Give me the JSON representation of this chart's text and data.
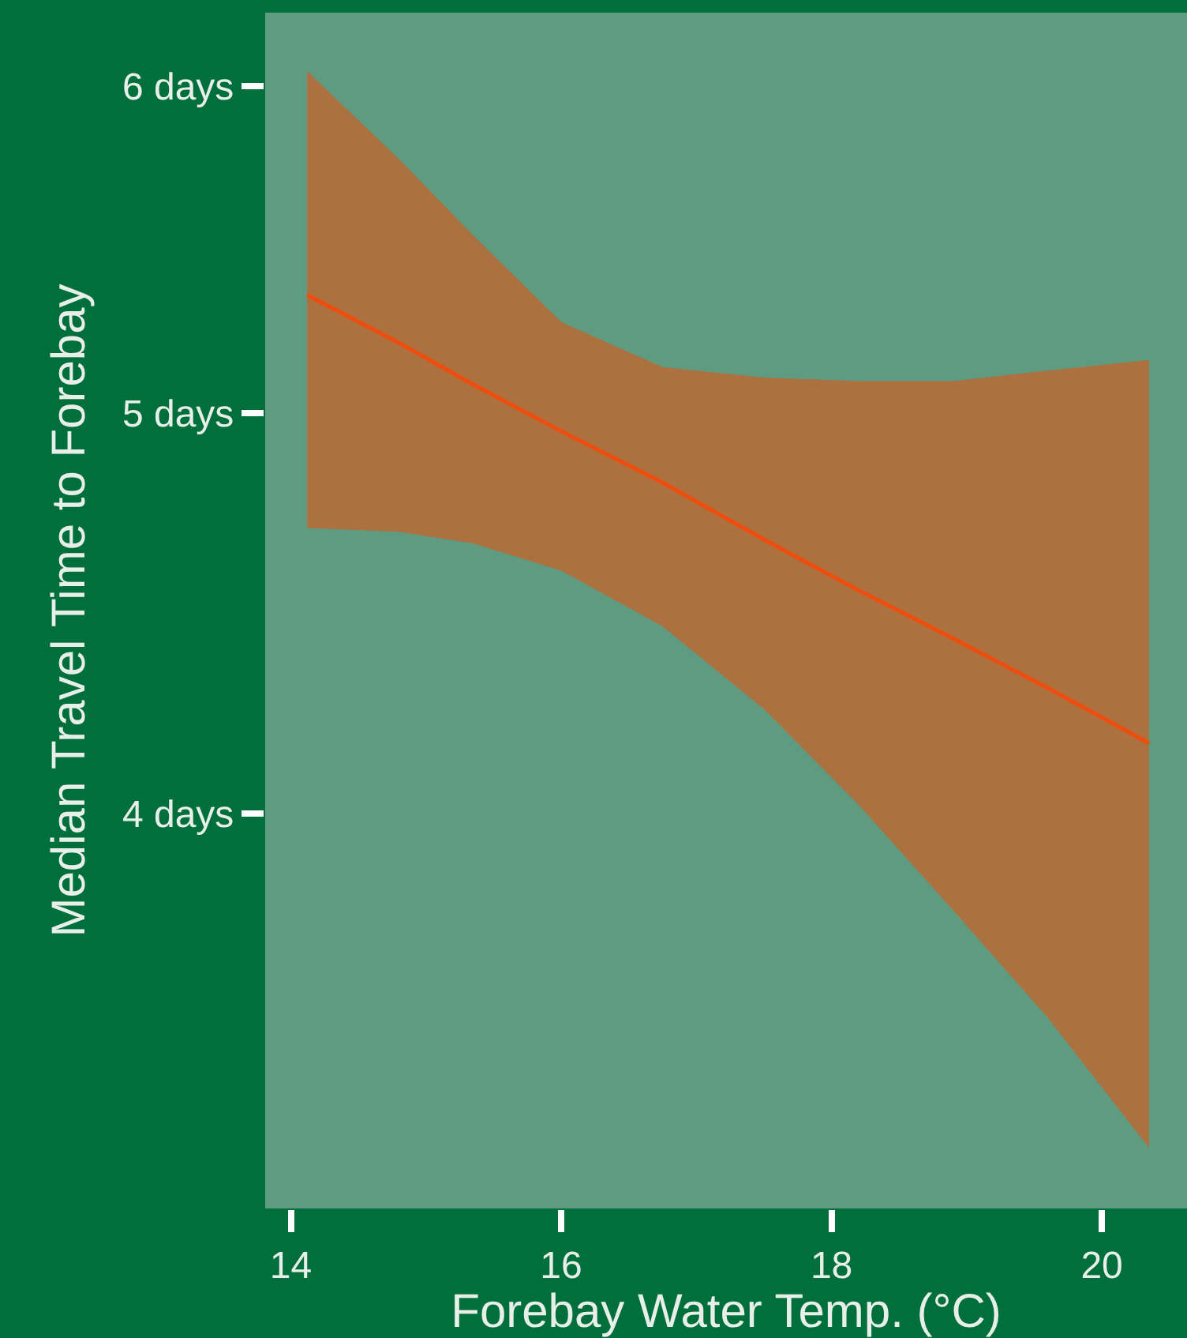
{
  "chart_data": {
    "type": "line",
    "xlabel": "Forebay Water Temp. (°C)",
    "ylabel": "Median Travel Time to Forebay",
    "log": "y",
    "grid": false,
    "xlim": [
      13.81,
      20.63
    ],
    "ylim": [
      3.21,
      6.25
    ],
    "xticks": [
      14,
      16,
      18,
      20
    ],
    "yticks": [
      {
        "value": 4,
        "label": "4 days"
      },
      {
        "value": 5,
        "label": "5 days"
      },
      {
        "value": 6,
        "label": "6 days"
      }
    ],
    "series": [
      {
        "color": "#ef4d0e",
        "x": [
          14.12,
          14.8,
          15.35,
          16,
          16.75,
          17.5,
          18.2,
          18.9,
          19.6,
          20.35
        ],
        "values": [
          5.34,
          5.2,
          5.08,
          4.95,
          4.81,
          4.66,
          4.53,
          4.41,
          4.29,
          4.16
        ],
        "upper": [
          6.05,
          5.76,
          5.52,
          5.26,
          5.13,
          5.1,
          5.09,
          5.09,
          5.12,
          5.15
        ],
        "lower": [
          4.69,
          4.68,
          4.65,
          4.58,
          4.44,
          4.24,
          4.02,
          3.79,
          3.57,
          3.32
        ]
      }
    ]
  }
}
